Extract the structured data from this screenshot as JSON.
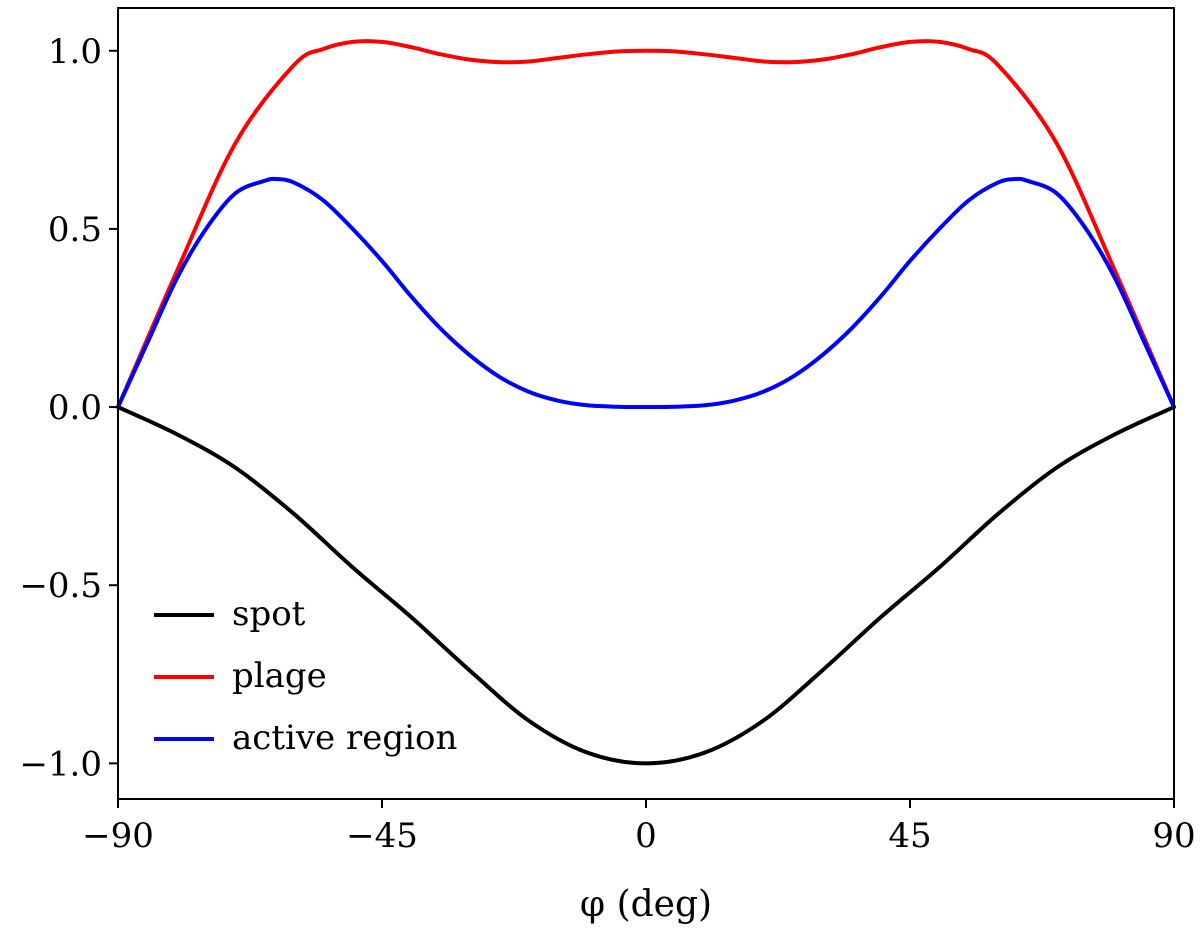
{
  "chart_data": {
    "type": "line",
    "title": "",
    "xlabel": "φ (deg)",
    "ylabel": "",
    "xlim": [
      -90,
      90
    ],
    "ylim": [
      -1.1,
      1.12
    ],
    "xticks": [
      {
        "value": -90,
        "label": "−90"
      },
      {
        "value": -45,
        "label": "−45"
      },
      {
        "value": 0,
        "label": "0"
      },
      {
        "value": 45,
        "label": "45"
      },
      {
        "value": 90,
        "label": "90"
      }
    ],
    "yticks": [
      {
        "value": -1.0,
        "label": "−1.0"
      },
      {
        "value": -0.5,
        "label": "−0.5"
      },
      {
        "value": 0.0,
        "label": "0.0"
      },
      {
        "value": 0.5,
        "label": "0.5"
      },
      {
        "value": 1.0,
        "label": "1.0"
      }
    ],
    "legend_position": "lower-left",
    "series": [
      {
        "name": "spot",
        "color": "#000000",
        "x": [
          -90,
          -80,
          -70,
          -60,
          -50,
          -40,
          -30,
          -20,
          -10,
          0,
          10,
          20,
          30,
          40,
          50,
          60,
          70,
          80,
          90
        ],
        "y": [
          0.0,
          -0.076,
          -0.17,
          -0.3,
          -0.45,
          -0.59,
          -0.74,
          -0.88,
          -0.97,
          -1.0,
          -0.97,
          -0.88,
          -0.74,
          -0.59,
          -0.45,
          -0.3,
          -0.17,
          -0.076,
          0.0
        ]
      },
      {
        "name": "plage",
        "color": "#ff0000",
        "x": [
          -90,
          -80,
          -70,
          -60,
          -55,
          -50,
          -45,
          -40,
          -35,
          -30,
          -25,
          -20,
          -15,
          -10,
          -5,
          0,
          5,
          10,
          15,
          20,
          25,
          30,
          35,
          40,
          45,
          50,
          55,
          60,
          70,
          80,
          90
        ],
        "y": [
          0.0,
          0.38,
          0.74,
          0.96,
          1.005,
          1.025,
          1.025,
          1.01,
          0.99,
          0.975,
          0.968,
          0.97,
          0.98,
          0.99,
          0.998,
          1.0,
          0.998,
          0.99,
          0.98,
          0.97,
          0.968,
          0.975,
          0.99,
          1.01,
          1.025,
          1.025,
          1.005,
          0.96,
          0.74,
          0.38,
          0.0
        ]
      },
      {
        "name": "active region",
        "color": "#0000ff",
        "x": [
          -90,
          -85,
          -80,
          -75,
          -70,
          -65,
          -63,
          -60,
          -55,
          -50,
          -45,
          -40,
          -35,
          -30,
          -25,
          -20,
          -15,
          -10,
          -5,
          0,
          5,
          10,
          15,
          20,
          25,
          30,
          35,
          40,
          45,
          50,
          55,
          60,
          63,
          65,
          70,
          75,
          80,
          85,
          90
        ],
        "y": [
          0.0,
          0.18,
          0.36,
          0.5,
          0.6,
          0.635,
          0.64,
          0.63,
          0.58,
          0.5,
          0.41,
          0.31,
          0.22,
          0.145,
          0.085,
          0.043,
          0.018,
          0.005,
          0.001,
          0.0,
          0.001,
          0.005,
          0.018,
          0.043,
          0.085,
          0.145,
          0.22,
          0.31,
          0.41,
          0.5,
          0.58,
          0.63,
          0.64,
          0.635,
          0.6,
          0.5,
          0.36,
          0.18,
          0.0
        ]
      }
    ]
  }
}
